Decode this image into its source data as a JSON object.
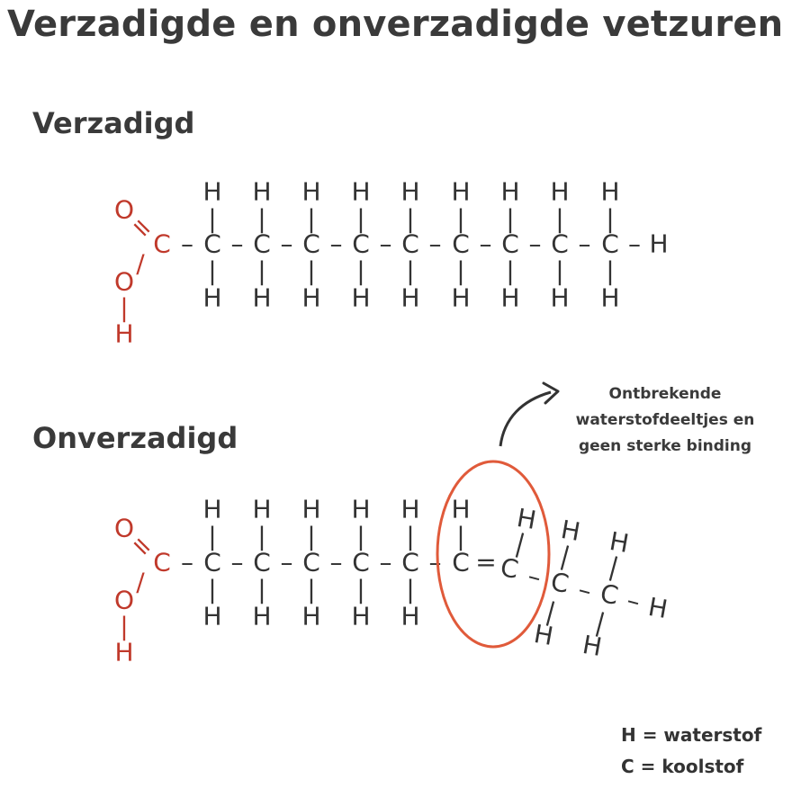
{
  "title": "Verzadigde en onverzadigde vetzuren",
  "sections": {
    "saturated": "Verzadigd",
    "unsaturated": "Onverzadigd"
  },
  "atoms": {
    "hydrogen": "H",
    "carbon": "C",
    "oxygen": "O"
  },
  "bonds": {
    "single_horizontal": "–",
    "single_vertical": "|",
    "double_carbon": "=",
    "double_oxygen": "=",
    "single_oxygen": "/"
  },
  "annotation": {
    "lines": [
      "Ontbrekende",
      "waterstofdeeltjes en",
      "geen sterke binding"
    ]
  },
  "legend": {
    "hydrogen": "H = waterstof",
    "carbon": "C = koolstof"
  },
  "colors": {
    "carboxyl_group": "#c0392b",
    "highlight_circle": "#e05a3a",
    "text": "#333333",
    "arrow": "#333333"
  }
}
